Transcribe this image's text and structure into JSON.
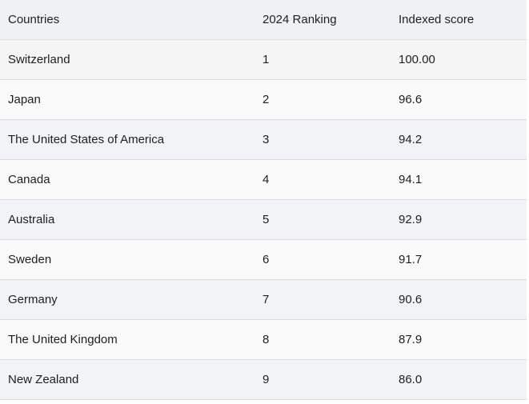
{
  "table": {
    "columns": [
      "Countries",
      "2024 Ranking",
      "Indexed score"
    ],
    "rows": [
      {
        "country": "Switzerland",
        "rank": "1",
        "score": "100.00"
      },
      {
        "country": "Japan",
        "rank": "2",
        "score": "96.6"
      },
      {
        "country": "The United States of America",
        "rank": "3",
        "score": "94.2"
      },
      {
        "country": "Canada",
        "rank": "4",
        "score": "94.1"
      },
      {
        "country": "Australia",
        "rank": "5",
        "score": "92.9"
      },
      {
        "country": "Sweden",
        "rank": "6",
        "score": "91.7"
      },
      {
        "country": "Germany",
        "rank": "7",
        "score": "90.6"
      },
      {
        "country": "The United Kingdom",
        "rank": "8",
        "score": "87.9"
      },
      {
        "country": "New Zealand",
        "rank": "9",
        "score": "86.0"
      }
    ]
  }
}
